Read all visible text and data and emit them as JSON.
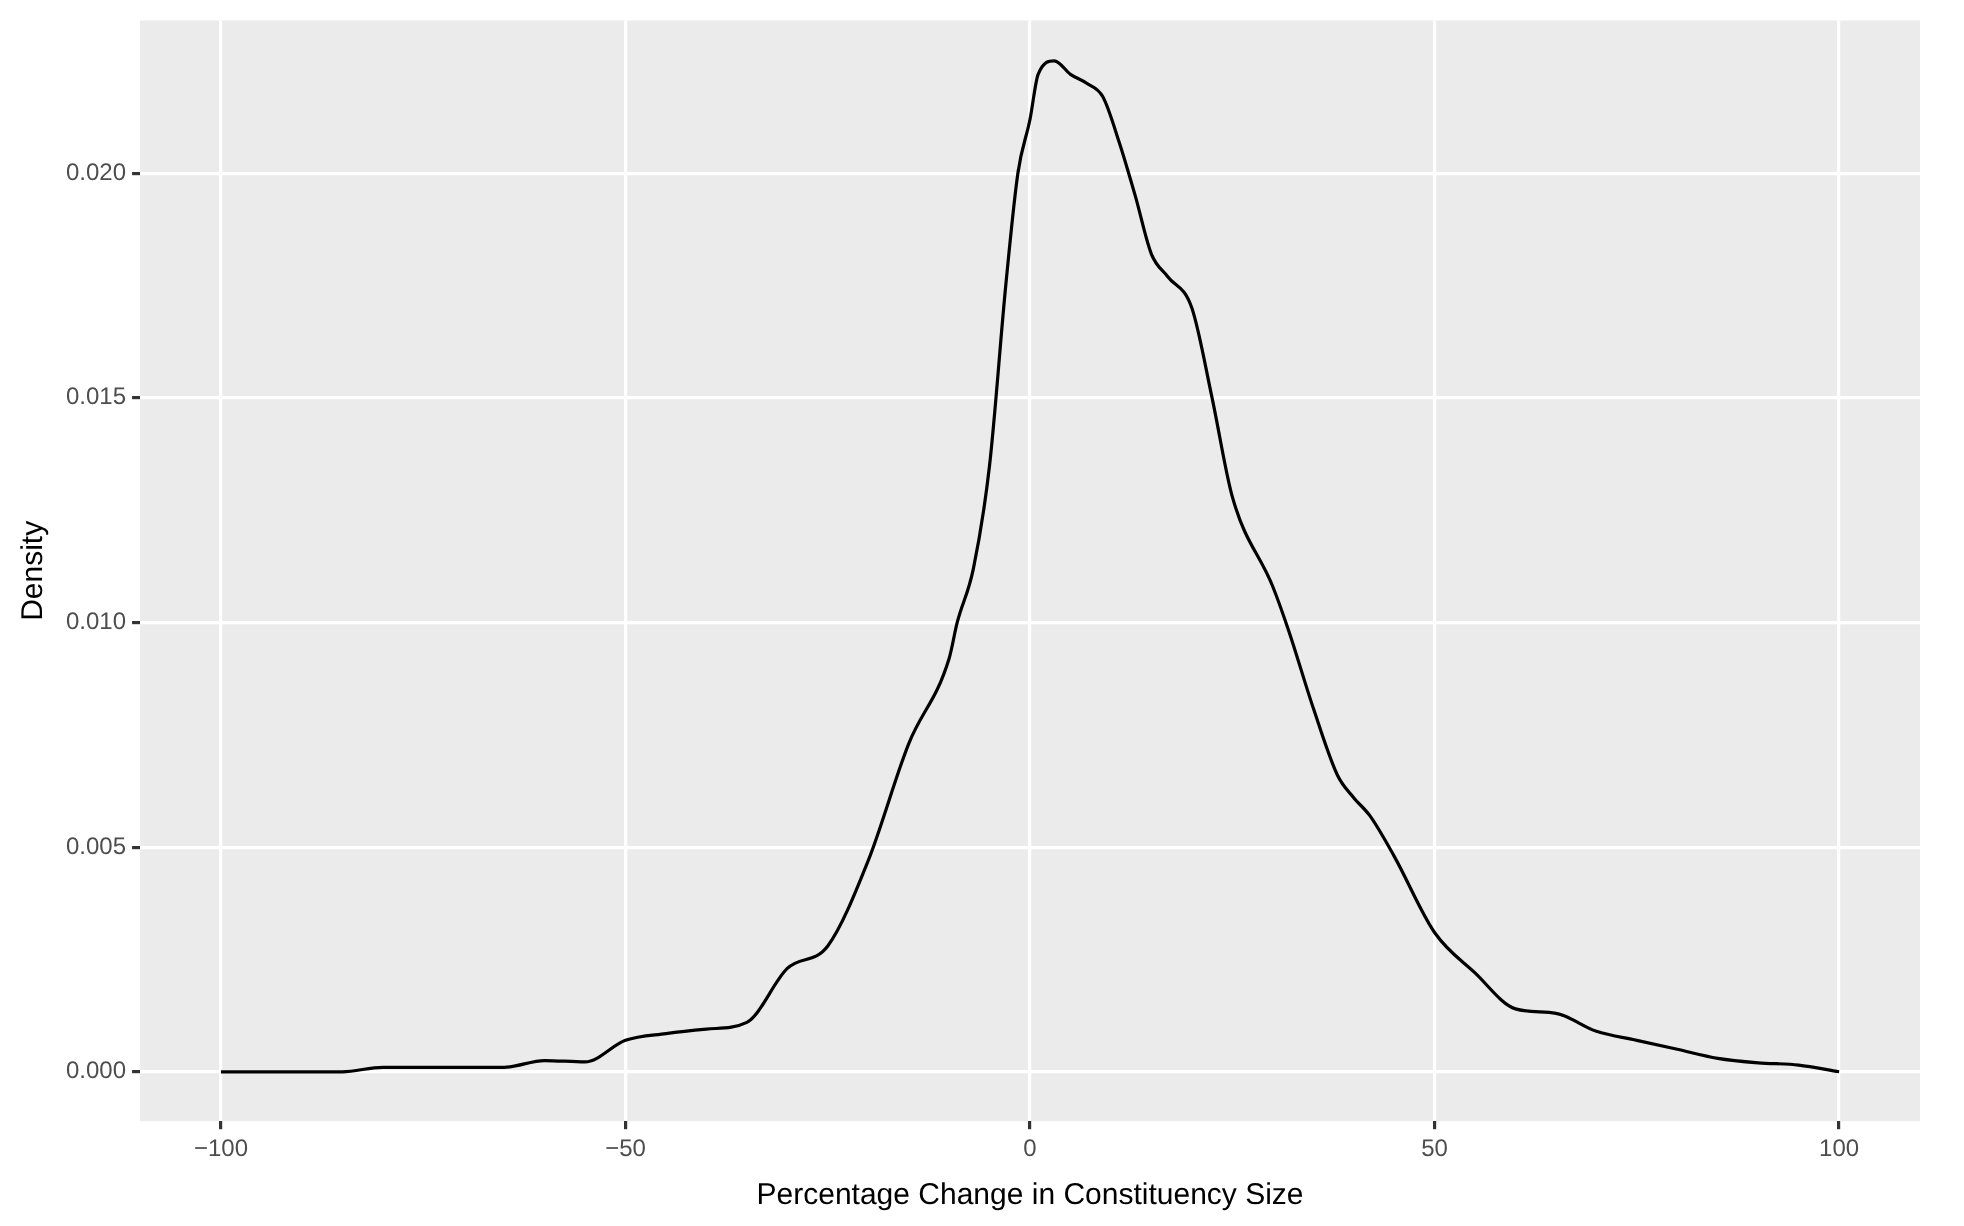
{
  "chart_data": {
    "type": "line",
    "xlabel": "Percentage Change in Constituency Size",
    "ylabel": "Density",
    "x": [
      -100,
      -90,
      -85,
      -80,
      -75,
      -70,
      -65,
      -60,
      -55,
      -50,
      -45,
      -40,
      -35,
      -30,
      -25,
      -20,
      -15,
      -10,
      -9,
      -7,
      -5,
      -3,
      -1.5,
      0,
      1,
      3,
      5,
      7,
      9,
      11,
      13,
      15,
      17,
      20,
      22.5,
      25,
      30,
      32,
      35,
      38,
      40,
      42,
      45,
      50,
      55,
      60,
      65,
      70,
      75,
      80,
      85,
      90,
      95,
      100
    ],
    "series": [
      {
        "color": "#000000",
        "values": [
          0,
          0,
          0,
          0.0001,
          0.0001,
          0.0001,
          0.0001,
          0.00025,
          0.00022,
          0.0007,
          0.00085,
          0.00095,
          0.0011,
          0.0023,
          0.0028,
          0.0047,
          0.0073,
          0.0092,
          0.01,
          0.0112,
          0.0135,
          0.0175,
          0.02,
          0.0212,
          0.0222,
          0.0225,
          0.0222,
          0.022,
          0.0217,
          0.0207,
          0.0195,
          0.0182,
          0.0177,
          0.017,
          0.015,
          0.0128,
          0.0108,
          0.0098,
          0.0081,
          0.0066,
          0.0061,
          0.0057,
          0.0048,
          0.0031,
          0.0022,
          0.0014,
          0.0013,
          0.0009,
          0.0007,
          0.0005,
          0.0003,
          0.0002,
          0.00015,
          0
        ]
      }
    ],
    "xlim": [
      -110,
      110
    ],
    "xticks": [
      {
        "value": -100,
        "label": "−100"
      },
      {
        "value": -50,
        "label": "−50"
      },
      0,
      50,
      100
    ],
    "ylim": [
      -0.0011,
      0.0234
    ],
    "yticks": [
      {
        "value": 0,
        "label": "0.000"
      },
      {
        "value": 0.005,
        "label": "0.005"
      },
      {
        "value": 0.01,
        "label": "0.010"
      },
      {
        "value": 0.015,
        "label": "0.015"
      },
      {
        "value": 0.02,
        "label": "0.020"
      }
    ],
    "grid": true
  }
}
